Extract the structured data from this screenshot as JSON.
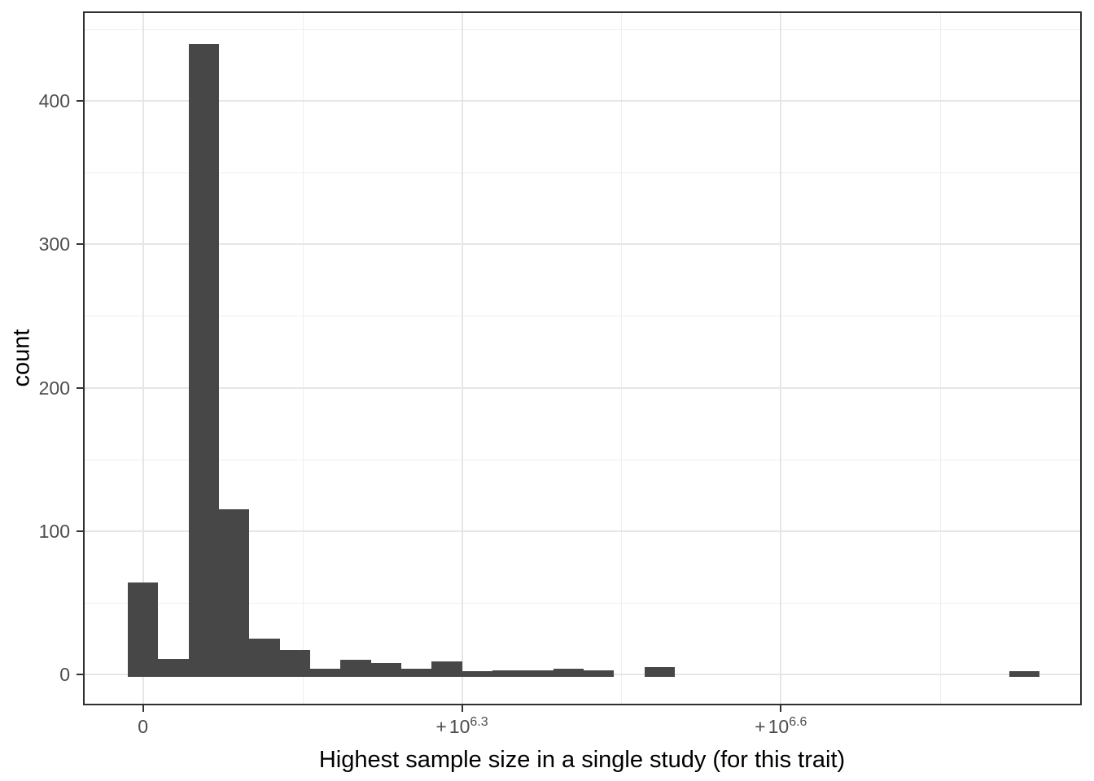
{
  "chart_data": {
    "type": "bar",
    "subtype": "histogram",
    "title": "",
    "xlabel": "Highest sample size in a single study (for this trait)",
    "ylabel": "count",
    "legend": "none",
    "grid": "on",
    "x_axis": {
      "tick_labels": [
        {
          "prefix": "",
          "base": "0",
          "sup": ""
        },
        {
          "prefix": "+",
          "base": "10",
          "sup": "6.3"
        },
        {
          "prefix": "+",
          "base": "10",
          "sup": "6.6"
        }
      ]
    },
    "y_axis": {
      "ticks": [
        0,
        100,
        200,
        300,
        400
      ],
      "minor_ticks": [
        50,
        150,
        250,
        350,
        450
      ],
      "ylim": [
        0,
        440
      ]
    },
    "bins": {
      "n_bins": 30,
      "note_first_bin_at_zero": "first bin sits at the 0 tick",
      "counts": [
        64,
        11,
        440,
        115,
        25,
        17,
        4,
        10,
        8,
        4,
        9,
        2,
        3,
        3,
        4,
        3,
        0,
        5,
        0,
        0,
        0,
        0,
        0,
        0,
        0,
        0,
        0,
        0,
        0,
        2
      ]
    },
    "colors": {
      "bar_fill": "#474747",
      "panel_border": "#2f2f2f",
      "grid_major": "#e6e6e6",
      "grid_minor": "#efefef",
      "tick_mark": "#333333",
      "tick_label": "#4d4d4d",
      "axis_title": "#000000",
      "background": "#ffffff"
    }
  }
}
